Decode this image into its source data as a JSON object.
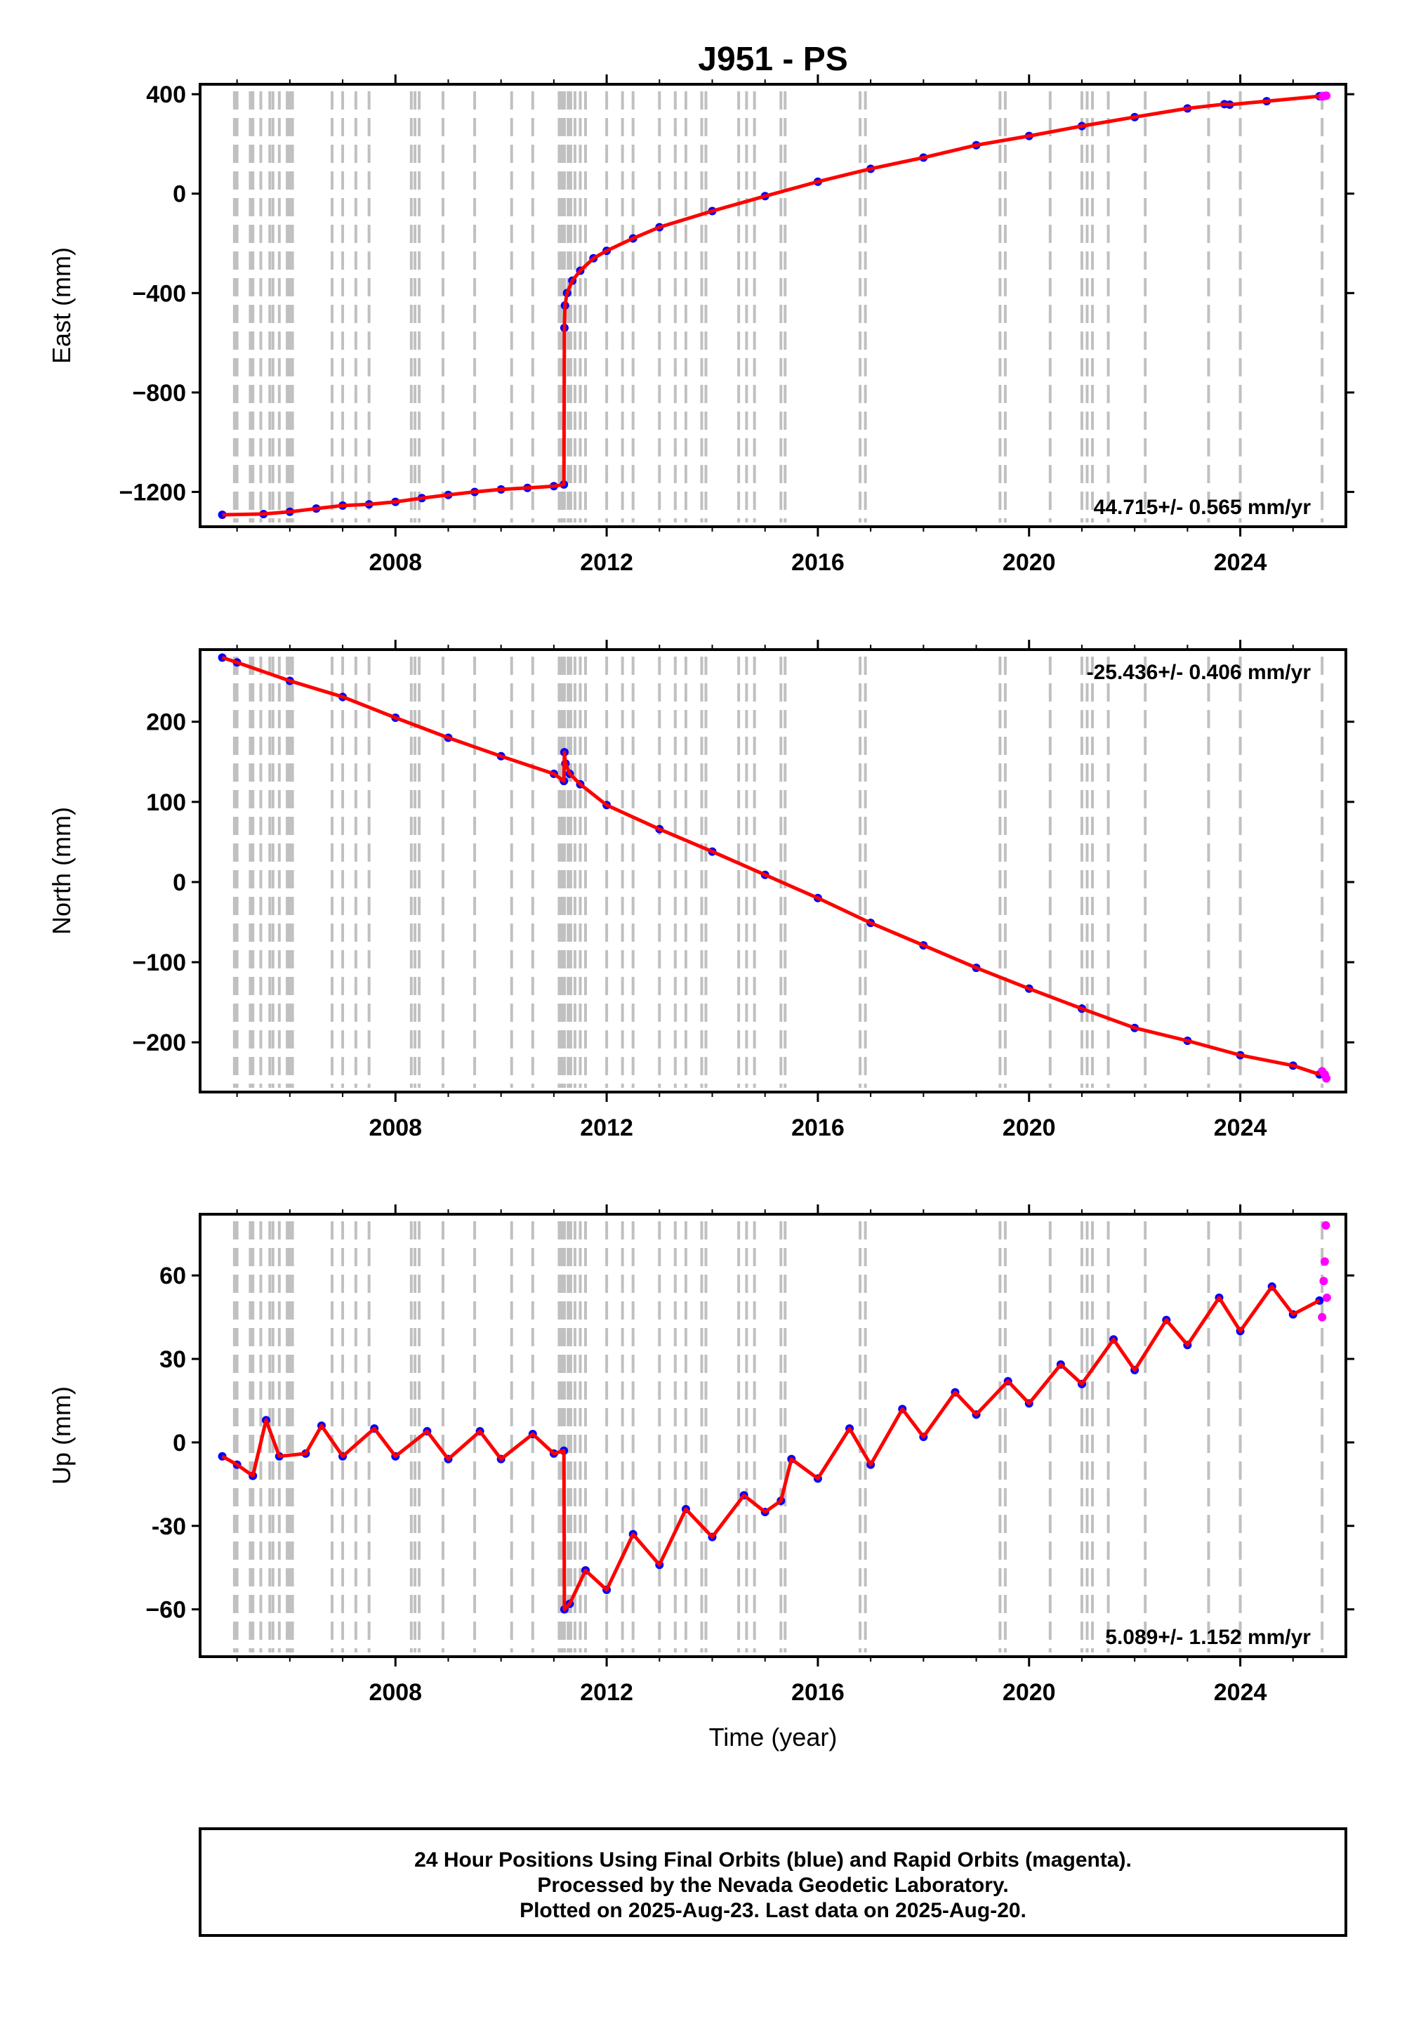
{
  "chart_data": {
    "type": "scatter",
    "title": "J951 - PS",
    "xlabel": "Time (year)",
    "xlim": [
      2004.3,
      2026.0
    ],
    "x_ticks": [
      2008,
      2012,
      2016,
      2020,
      2024
    ],
    "x_tick_labels": [
      "2008",
      "2012",
      "2016",
      "2020",
      "2024"
    ],
    "colors": {
      "final": "#0000ff",
      "rapid": "#ff00ff",
      "model": "#ff0000",
      "events": "#c0c0c0"
    },
    "event_dates": [
      2004.95,
      2005.0,
      2005.25,
      2005.3,
      2005.45,
      2005.62,
      2005.68,
      2005.8,
      2005.95,
      2006.0,
      2006.05,
      2006.8,
      2007.0,
      2007.25,
      2007.5,
      2008.3,
      2008.37,
      2008.45,
      2008.9,
      2009.5,
      2010.2,
      2010.6,
      2011.1,
      2011.15,
      2011.2,
      2011.27,
      2011.32,
      2011.4,
      2011.5,
      2011.6,
      2012.0,
      2012.3,
      2012.5,
      2013.0,
      2013.3,
      2013.5,
      2013.8,
      2013.88,
      2014.5,
      2014.65,
      2014.8,
      2015.3,
      2015.38,
      2016.8,
      2016.9,
      2019.45,
      2019.55,
      2020.4,
      2021.0,
      2021.1,
      2021.2,
      2021.5,
      2022.2,
      2023.4,
      2024.0,
      2025.55
    ],
    "panels": [
      {
        "ylabel": "East (mm)",
        "ylim": [
          -1340,
          440
        ],
        "y_ticks": [
          -1200,
          -800,
          -400,
          0,
          400
        ],
        "y_tick_labels": [
          "−1200",
          "−800",
          "−400",
          "0",
          "400"
        ],
        "rate_label": "44.715+/- 0.565 mm/yr",
        "rate_position": "bottom-right",
        "series": [
          {
            "name": "final",
            "x": [
              2004.72,
              2005.5,
              2006.0,
              2006.5,
              2007.0,
              2007.5,
              2008.0,
              2008.5,
              2009.0,
              2009.5,
              2010.0,
              2010.5,
              2011.0,
              2011.19,
              2011.2,
              2011.21,
              2011.25,
              2011.35,
              2011.5,
              2011.75,
              2012.0,
              2012.5,
              2013.0,
              2014.0,
              2015.0,
              2016.0,
              2017.0,
              2018.0,
              2019.0,
              2020.0,
              2021.0,
              2022.0,
              2023.0,
              2023.7,
              2023.8,
              2024.5,
              2025.5
            ],
            "y": [
              -1292,
              -1289,
              -1280,
              -1267,
              -1255,
              -1250,
              -1240,
              -1225,
              -1212,
              -1200,
              -1190,
              -1184,
              -1177,
              -1170,
              -540,
              -450,
              -400,
              -350,
              -310,
              -260,
              -230,
              -180,
              -135,
              -70,
              -10,
              48,
              100,
              145,
              195,
              232,
              272,
              308,
              343,
              360,
              358,
              372,
              392
            ]
          },
          {
            "name": "rapid",
            "x": [
              2025.55,
              2025.6,
              2025.63
            ],
            "y": [
              391,
              393,
              394
            ]
          }
        ]
      },
      {
        "ylabel": "North (mm)",
        "ylim": [
          -262,
          290
        ],
        "y_ticks": [
          -200,
          -100,
          0,
          100,
          200
        ],
        "y_tick_labels": [
          "−200",
          "−100",
          "0",
          "100",
          "200"
        ],
        "rate_label": "-25.436+/- 0.406 mm/yr",
        "rate_position": "top-right",
        "series": [
          {
            "name": "final",
            "x": [
              2004.72,
              2005.0,
              2006.0,
              2007.0,
              2008.0,
              2009.0,
              2010.0,
              2011.0,
              2011.19,
              2011.2,
              2011.22,
              2011.3,
              2011.5,
              2012.0,
              2013.0,
              2014.0,
              2015.0,
              2016.0,
              2017.0,
              2018.0,
              2019.0,
              2020.0,
              2021.0,
              2022.0,
              2023.0,
              2024.0,
              2025.0,
              2025.5
            ],
            "y": [
              280,
              274,
              251,
              231,
              205,
              180,
              157,
              135,
              126,
              162,
              148,
              135,
              122,
              96,
              66,
              38,
              9,
              -20,
              -51,
              -79,
              -107,
              -133,
              -158,
              -182,
              -198,
              -216,
              -229,
              -240
            ]
          },
          {
            "name": "rapid",
            "x": [
              2025.55,
              2025.6,
              2025.63
            ],
            "y": [
              -236,
              -240,
              -245
            ]
          }
        ]
      },
      {
        "ylabel": "Up (mm)",
        "ylim": [
          -77,
          82
        ],
        "y_ticks": [
          -60,
          -30,
          0,
          30,
          60
        ],
        "y_tick_labels": [
          "−60",
          "-30",
          "0",
          "30",
          "60"
        ],
        "rate_label": "5.089+/- 1.152 mm/yr",
        "rate_position": "bottom-right",
        "series": [
          {
            "name": "final",
            "x": [
              2004.72,
              2005.0,
              2005.3,
              2005.55,
              2005.8,
              2006.3,
              2006.6,
              2007.0,
              2007.6,
              2008.0,
              2008.6,
              2009.0,
              2009.6,
              2010.0,
              2010.6,
              2011.0,
              2011.19,
              2011.2,
              2011.3,
              2011.6,
              2012.0,
              2012.5,
              2013.0,
              2013.5,
              2014.0,
              2014.6,
              2015.0,
              2015.3,
              2015.5,
              2016.0,
              2016.6,
              2017.0,
              2017.6,
              2018.0,
              2018.6,
              2019.0,
              2019.6,
              2020.0,
              2020.6,
              2021.0,
              2021.6,
              2022.0,
              2022.6,
              2023.0,
              2023.6,
              2024.0,
              2024.6,
              2025.0,
              2025.5
            ],
            "y": [
              -5,
              -8,
              -12,
              8,
              -5,
              -4,
              6,
              -5,
              5,
              -5,
              4,
              -6,
              4,
              -6,
              3,
              -4,
              -3,
              -60,
              -58,
              -46,
              -53,
              -33,
              -44,
              -24,
              -34,
              -19,
              -25,
              -21,
              -6,
              -13,
              5,
              -8,
              12,
              2,
              18,
              10,
              22,
              14,
              28,
              21,
              37,
              26,
              44,
              35,
              52,
              40,
              56,
              46,
              51
            ]
          },
          {
            "name": "rapid",
            "x": [
              2025.55,
              2025.58,
              2025.6,
              2025.62,
              2025.64
            ],
            "y": [
              45,
              58,
              65,
              78,
              52
            ]
          }
        ]
      }
    ],
    "footer_lines": [
      "24 Hour Positions Using Final Orbits (blue) and Rapid Orbits (magenta).",
      "Processed by the Nevada Geodetic Laboratory.",
      "Plotted on 2025-Aug-23. Last data on 2025-Aug-20."
    ]
  }
}
